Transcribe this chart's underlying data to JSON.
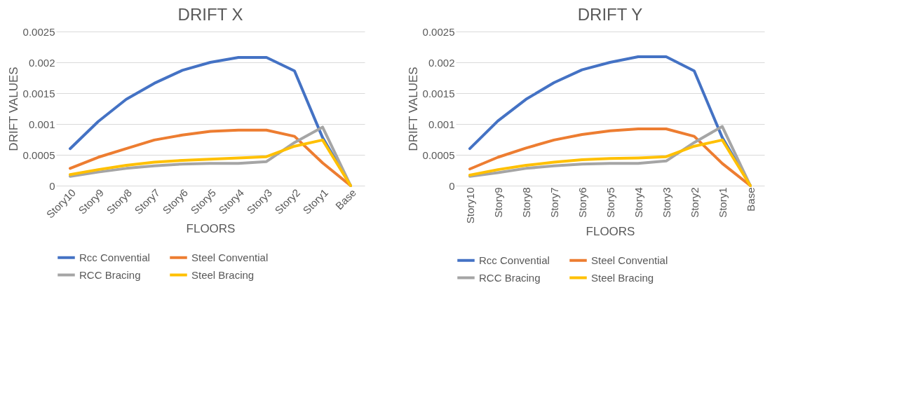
{
  "chart_data": [
    {
      "type": "line",
      "title": "DRIFT X",
      "xlabel": "FLOORS",
      "ylabel": "DRIFT VALUES",
      "categories": [
        "Story10",
        "Story9",
        "Story8",
        "Story7",
        "Story6",
        "Story5",
        "Story4",
        "Story3",
        "Story2",
        "Story1",
        "Base"
      ],
      "ylim": [
        0,
        0.0025
      ],
      "yticks": [
        0,
        0.0005,
        0.001,
        0.0015,
        0.002,
        0.0025
      ],
      "grid": "y",
      "legend": "bottom",
      "marker": "none",
      "line_style": "solid",
      "series": [
        {
          "name": "Rcc Convential",
          "color": "#4472c4",
          "values": [
            0.0006,
            0.00104,
            0.0014,
            0.00166,
            0.00187,
            0.002,
            0.00208,
            0.00208,
            0.00186,
            0.00078,
            0
          ]
        },
        {
          "name": "Steel Convential",
          "color": "#ed7d31",
          "values": [
            0.00028,
            0.00046,
            0.0006,
            0.00074,
            0.00082,
            0.00088,
            0.0009,
            0.0009,
            0.0008,
            0.00037,
            0
          ]
        },
        {
          "name": "RCC Bracing",
          "color": "#a5a5a5",
          "values": [
            0.00015,
            0.00022,
            0.00028,
            0.00032,
            0.00035,
            0.00036,
            0.00036,
            0.00039,
            0.0007,
            0.00095,
            0
          ]
        },
        {
          "name": "Steel Bracing",
          "color": "#ffc000",
          "values": [
            0.00018,
            0.00026,
            0.00033,
            0.00038,
            0.00041,
            0.00043,
            0.00045,
            0.00047,
            0.00064,
            0.00074,
            0
          ]
        }
      ]
    },
    {
      "type": "line",
      "title": "DRIFT Y",
      "xlabel": "FLOORS",
      "ylabel": "DRIFT VALUES",
      "categories": [
        "Story10",
        "Story9",
        "Story8",
        "Story7",
        "Story6",
        "Story5",
        "Story4",
        "Story3",
        "Story2",
        "Story1",
        "Base"
      ],
      "ylim": [
        0,
        0.0025
      ],
      "yticks": [
        0,
        0.0005,
        0.001,
        0.0015,
        0.002,
        0.0025
      ],
      "grid": "y",
      "legend": "bottom",
      "marker": "none",
      "line_style": "solid",
      "series": [
        {
          "name": "Rcc Convential",
          "color": "#4472c4",
          "values": [
            0.0006,
            0.00105,
            0.0014,
            0.00167,
            0.00188,
            0.002,
            0.00209,
            0.00209,
            0.00186,
            0.00078,
            0
          ]
        },
        {
          "name": "Steel Convential",
          "color": "#ed7d31",
          "values": [
            0.00027,
            0.00046,
            0.00061,
            0.00074,
            0.00083,
            0.00089,
            0.00092,
            0.00092,
            0.0008,
            0.00036,
            0
          ]
        },
        {
          "name": "RCC Bracing",
          "color": "#a5a5a5",
          "values": [
            0.00015,
            0.00021,
            0.00028,
            0.00032,
            0.00035,
            0.00036,
            0.00036,
            0.0004,
            0.0007,
            0.00096,
            0
          ]
        },
        {
          "name": "Steel Bracing",
          "color": "#ffc000",
          "values": [
            0.00017,
            0.00026,
            0.00033,
            0.00038,
            0.00042,
            0.00044,
            0.00045,
            0.00047,
            0.00064,
            0.00074,
            0
          ]
        }
      ]
    }
  ]
}
